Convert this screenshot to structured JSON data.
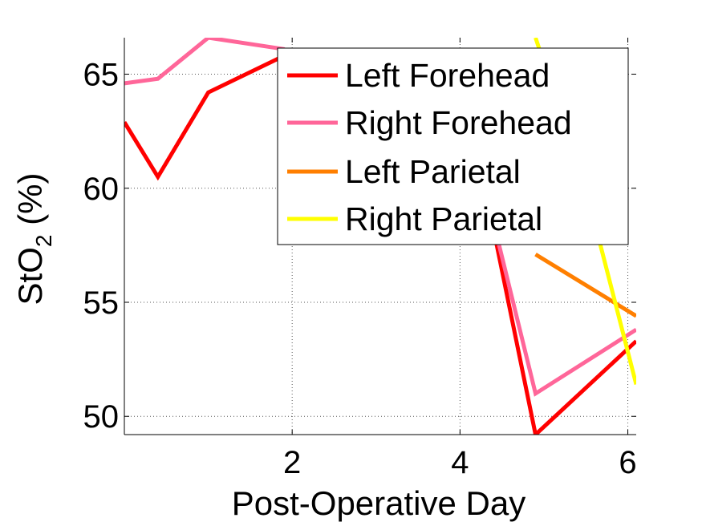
{
  "chart_data": {
    "type": "line",
    "title": "",
    "xlabel": "Post-Operative Day",
    "ylabel": "StO",
    "ylabel_subscript": "2",
    "ylabel_suffix": " (%)",
    "xlim": [
      0,
      6.1
    ],
    "ylim": [
      49.2,
      66.6
    ],
    "xticks": [
      2,
      4,
      6
    ],
    "xtick_labels": [
      "2",
      "4",
      "6"
    ],
    "yticks": [
      50,
      55,
      60,
      65
    ],
    "ytick_labels": [
      "50",
      "55",
      "60",
      "65"
    ],
    "grid": true,
    "legend_position": "top-right",
    "series": [
      {
        "name": "Left Forehead",
        "color": "#ff0000",
        "points": [
          [
            0,
            62.9
          ],
          [
            0.4,
            60.5
          ],
          [
            1.0,
            64.2
          ],
          [
            1.9,
            65.8
          ],
          [
            4.3,
            60.0
          ],
          [
            4.9,
            49.2
          ],
          [
            6.1,
            53.3
          ]
        ]
      },
      {
        "name": "Right Forehead",
        "color": "#ff6699",
        "points": [
          [
            0,
            64.6
          ],
          [
            0.4,
            64.8
          ],
          [
            1.0,
            66.6
          ],
          [
            1.9,
            66.1
          ],
          [
            4.3,
            60.0
          ],
          [
            4.9,
            51.0
          ],
          [
            6.1,
            53.8
          ]
        ]
      },
      {
        "name": "Left Parietal",
        "color": "#ff7f00",
        "points": [
          [
            4.9,
            57.1
          ],
          [
            6.1,
            54.4
          ]
        ]
      },
      {
        "name": "Right Parietal",
        "color": "#ffff00",
        "points": [
          [
            4.9,
            66.6
          ],
          [
            5.5,
            60.0
          ],
          [
            6.1,
            51.4
          ]
        ]
      }
    ]
  }
}
